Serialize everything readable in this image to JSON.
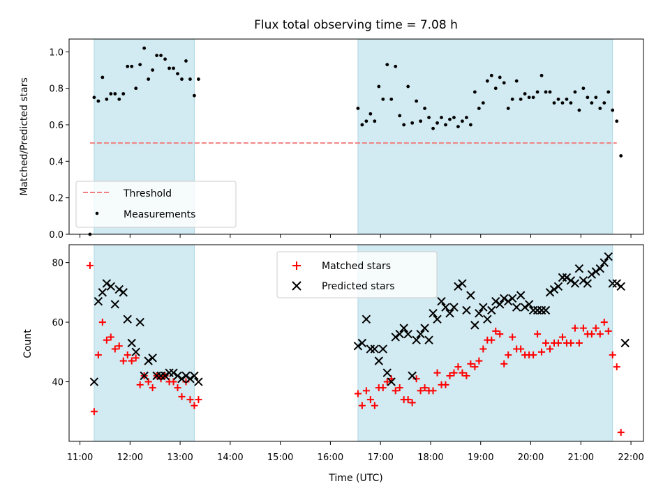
{
  "title": "Flux total observing time = 7.08 h",
  "xlabel": "Time (UTC)",
  "x_ticks": [
    "11:00",
    "12:00",
    "13:00",
    "14:00",
    "15:00",
    "16:00",
    "17:00",
    "18:00",
    "19:00",
    "20:00",
    "21:00",
    "22:00"
  ],
  "colors": {
    "shade": "#add8e6",
    "threshold": "#f08080",
    "matched": "#ff0000",
    "predicted": "#000000",
    "measurement": "#000000"
  },
  "chart_data": [
    {
      "type": "scatter",
      "ylabel": "Matched/Predicted stars",
      "xlim": [
        "10:47",
        "22:15"
      ],
      "ylim": [
        0,
        1.07
      ],
      "y_ticks": [
        "0.0",
        "0.2",
        "0.4",
        "0.6",
        "0.8",
        "1.0"
      ],
      "shaded_intervals": [
        [
          "11:17",
          "13:17"
        ],
        [
          "16:33",
          "21:38"
        ]
      ],
      "legend": {
        "placement": "lower-left",
        "threshold_label": "Threshold",
        "measurements_label": "Measurements"
      },
      "threshold": {
        "value": 0.5,
        "x_range": [
          "11:12",
          "21:43"
        ]
      },
      "measurements": [
        [
          "11:12",
          0.0
        ],
        [
          "11:17",
          0.75
        ],
        [
          "11:22",
          0.73
        ],
        [
          "11:27",
          0.86
        ],
        [
          "11:32",
          0.74
        ],
        [
          "11:37",
          0.77
        ],
        [
          "11:42",
          0.77
        ],
        [
          "11:47",
          0.74
        ],
        [
          "11:52",
          0.77
        ],
        [
          "11:57",
          0.92
        ],
        [
          "12:02",
          0.92
        ],
        [
          "12:07",
          0.8
        ],
        [
          "12:12",
          0.93
        ],
        [
          "12:17",
          1.02
        ],
        [
          "12:22",
          0.85
        ],
        [
          "12:27",
          0.9
        ],
        [
          "12:32",
          0.98
        ],
        [
          "12:37",
          0.98
        ],
        [
          "12:42",
          0.96
        ],
        [
          "12:47",
          0.91
        ],
        [
          "12:52",
          0.91
        ],
        [
          "12:57",
          0.88
        ],
        [
          "13:02",
          0.85
        ],
        [
          "13:07",
          0.95
        ],
        [
          "13:12",
          0.85
        ],
        [
          "13:17",
          0.76
        ],
        [
          "13:22",
          0.85
        ],
        [
          "16:33",
          0.69
        ],
        [
          "16:38",
          0.6
        ],
        [
          "16:43",
          0.62
        ],
        [
          "16:48",
          0.66
        ],
        [
          "16:53",
          0.62
        ],
        [
          "16:58",
          0.81
        ],
        [
          "17:03",
          0.74
        ],
        [
          "17:08",
          0.93
        ],
        [
          "17:13",
          0.74
        ],
        [
          "17:18",
          0.92
        ],
        [
          "17:23",
          0.65
        ],
        [
          "17:28",
          0.6
        ],
        [
          "17:33",
          0.81
        ],
        [
          "17:38",
          0.61
        ],
        [
          "17:43",
          0.73
        ],
        [
          "17:48",
          0.62
        ],
        [
          "17:53",
          0.69
        ],
        [
          "17:58",
          0.64
        ],
        [
          "18:03",
          0.58
        ],
        [
          "18:08",
          0.61
        ],
        [
          "18:13",
          0.64
        ],
        [
          "18:18",
          0.6
        ],
        [
          "18:23",
          0.63
        ],
        [
          "18:28",
          0.64
        ],
        [
          "18:33",
          0.59
        ],
        [
          "18:38",
          0.62
        ],
        [
          "18:43",
          0.64
        ],
        [
          "18:48",
          0.6
        ],
        [
          "18:53",
          0.78
        ],
        [
          "18:58",
          0.69
        ],
        [
          "19:03",
          0.72
        ],
        [
          "19:08",
          0.84
        ],
        [
          "19:13",
          0.87
        ],
        [
          "19:18",
          0.8
        ],
        [
          "19:23",
          0.86
        ],
        [
          "19:28",
          0.83
        ],
        [
          "19:33",
          0.69
        ],
        [
          "19:38",
          0.74
        ],
        [
          "19:43",
          0.84
        ],
        [
          "19:48",
          0.74
        ],
        [
          "19:53",
          0.77
        ],
        [
          "19:58",
          0.75
        ],
        [
          "20:03",
          0.75
        ],
        [
          "20:08",
          0.78
        ],
        [
          "20:13",
          0.87
        ],
        [
          "20:18",
          0.78
        ],
        [
          "20:23",
          0.78
        ],
        [
          "20:28",
          0.72
        ],
        [
          "20:33",
          0.74
        ],
        [
          "20:38",
          0.72
        ],
        [
          "20:43",
          0.74
        ],
        [
          "20:48",
          0.72
        ],
        [
          "20:53",
          0.78
        ],
        [
          "20:58",
          0.68
        ],
        [
          "21:03",
          0.8
        ],
        [
          "21:08",
          0.75
        ],
        [
          "21:13",
          0.72
        ],
        [
          "21:18",
          0.75
        ],
        [
          "21:23",
          0.69
        ],
        [
          "21:28",
          0.72
        ],
        [
          "21:33",
          0.78
        ],
        [
          "21:38",
          0.68
        ],
        [
          "21:43",
          0.62
        ],
        [
          "21:48",
          0.43
        ]
      ]
    },
    {
      "type": "scatter",
      "ylabel": "Count",
      "xlim": [
        "10:47",
        "22:15"
      ],
      "ylim": [
        20,
        86
      ],
      "y_ticks": [
        "40",
        "60",
        "80"
      ],
      "shaded_intervals": [
        [
          "11:17",
          "13:17"
        ],
        [
          "16:33",
          "21:38"
        ]
      ],
      "legend": {
        "placement": "top-center",
        "matched_label": "Matched stars",
        "predicted_label": "Predicted stars"
      },
      "series": [
        {
          "name": "Matched stars",
          "points": [
            [
              "11:12",
              79
            ],
            [
              "11:17",
              30
            ],
            [
              "11:22",
              49
            ],
            [
              "11:27",
              60
            ],
            [
              "11:32",
              54
            ],
            [
              "11:37",
              55
            ],
            [
              "11:42",
              51
            ],
            [
              "11:47",
              52
            ],
            [
              "11:52",
              47
            ],
            [
              "11:57",
              49
            ],
            [
              "12:02",
              47
            ],
            [
              "12:07",
              48
            ],
            [
              "12:12",
              39
            ],
            [
              "12:17",
              42
            ],
            [
              "12:22",
              40
            ],
            [
              "12:27",
              38
            ],
            [
              "12:32",
              42
            ],
            [
              "12:37",
              41
            ],
            [
              "12:42",
              42
            ],
            [
              "12:47",
              40
            ],
            [
              "12:52",
              40
            ],
            [
              "12:57",
              38
            ],
            [
              "13:02",
              35
            ],
            [
              "13:07",
              40
            ],
            [
              "13:12",
              34
            ],
            [
              "13:17",
              32
            ],
            [
              "13:22",
              34
            ],
            [
              "16:33",
              36
            ],
            [
              "16:38",
              32
            ],
            [
              "16:43",
              37
            ],
            [
              "16:48",
              34
            ],
            [
              "16:53",
              32
            ],
            [
              "16:58",
              38
            ],
            [
              "17:03",
              38
            ],
            [
              "17:08",
              40
            ],
            [
              "17:13",
              41
            ],
            [
              "17:18",
              37
            ],
            [
              "17:23",
              38
            ],
            [
              "17:28",
              34
            ],
            [
              "17:33",
              34
            ],
            [
              "17:38",
              33
            ],
            [
              "17:43",
              41
            ],
            [
              "17:48",
              37
            ],
            [
              "17:53",
              38
            ],
            [
              "17:58",
              37
            ],
            [
              "18:03",
              37
            ],
            [
              "18:08",
              43
            ],
            [
              "18:13",
              39
            ],
            [
              "18:18",
              39
            ],
            [
              "18:23",
              42
            ],
            [
              "18:28",
              43
            ],
            [
              "18:33",
              45
            ],
            [
              "18:38",
              43
            ],
            [
              "18:43",
              42
            ],
            [
              "18:48",
              46
            ],
            [
              "18:53",
              45
            ],
            [
              "18:58",
              47
            ],
            [
              "19:03",
              51
            ],
            [
              "19:08",
              54
            ],
            [
              "19:13",
              54
            ],
            [
              "19:18",
              57
            ],
            [
              "19:23",
              56
            ],
            [
              "19:28",
              46
            ],
            [
              "19:33",
              49
            ],
            [
              "19:38",
              55
            ],
            [
              "19:43",
              51
            ],
            [
              "19:48",
              51
            ],
            [
              "19:53",
              49
            ],
            [
              "19:58",
              49
            ],
            [
              "20:03",
              49
            ],
            [
              "20:08",
              56
            ],
            [
              "20:13",
              50
            ],
            [
              "20:18",
              53
            ],
            [
              "20:23",
              51
            ],
            [
              "20:28",
              53
            ],
            [
              "20:33",
              53
            ],
            [
              "20:38",
              55
            ],
            [
              "20:43",
              53
            ],
            [
              "20:48",
              53
            ],
            [
              "20:53",
              58
            ],
            [
              "20:58",
              53
            ],
            [
              "21:03",
              58
            ],
            [
              "21:08",
              56
            ],
            [
              "21:13",
              56
            ],
            [
              "21:18",
              58
            ],
            [
              "21:23",
              56
            ],
            [
              "21:28",
              60
            ],
            [
              "21:33",
              57
            ],
            [
              "21:38",
              49
            ],
            [
              "21:43",
              45
            ],
            [
              "21:48",
              23
            ]
          ]
        },
        {
          "name": "Predicted stars",
          "points": [
            [
              "11:17",
              40
            ],
            [
              "11:22",
              67
            ],
            [
              "11:27",
              70
            ],
            [
              "11:32",
              73
            ],
            [
              "11:37",
              72
            ],
            [
              "11:42",
              66
            ],
            [
              "11:47",
              71
            ],
            [
              "11:52",
              70
            ],
            [
              "11:57",
              61
            ],
            [
              "12:02",
              53
            ],
            [
              "12:07",
              50
            ],
            [
              "12:12",
              60
            ],
            [
              "12:17",
              42
            ],
            [
              "12:22",
              47
            ],
            [
              "12:27",
              48
            ],
            [
              "12:32",
              42
            ],
            [
              "12:37",
              42
            ],
            [
              "12:42",
              42
            ],
            [
              "12:47",
              43
            ],
            [
              "12:52",
              43
            ],
            [
              "12:57",
              42
            ],
            [
              "13:02",
              41
            ],
            [
              "13:07",
              42
            ],
            [
              "13:12",
              41
            ],
            [
              "13:17",
              42
            ],
            [
              "13:22",
              40
            ],
            [
              "16:33",
              52
            ],
            [
              "16:38",
              53
            ],
            [
              "16:43",
              61
            ],
            [
              "16:48",
              51
            ],
            [
              "16:53",
              51
            ],
            [
              "16:58",
              47
            ],
            [
              "17:03",
              51
            ],
            [
              "17:08",
              43
            ],
            [
              "17:13",
              40
            ],
            [
              "17:18",
              55
            ],
            [
              "17:23",
              56
            ],
            [
              "17:28",
              58
            ],
            [
              "17:33",
              56
            ],
            [
              "17:38",
              42
            ],
            [
              "17:43",
              54
            ],
            [
              "17:48",
              56
            ],
            [
              "17:53",
              58
            ],
            [
              "17:58",
              54
            ],
            [
              "18:03",
              63
            ],
            [
              "18:08",
              61
            ],
            [
              "18:13",
              67
            ],
            [
              "18:18",
              65
            ],
            [
              "18:23",
              63
            ],
            [
              "18:28",
              65
            ],
            [
              "18:33",
              72
            ],
            [
              "18:38",
              73
            ],
            [
              "18:43",
              64
            ],
            [
              "18:48",
              69
            ],
            [
              "18:53",
              59
            ],
            [
              "18:58",
              63
            ],
            [
              "19:03",
              65
            ],
            [
              "19:08",
              61
            ],
            [
              "19:13",
              64
            ],
            [
              "19:18",
              67
            ],
            [
              "19:23",
              66
            ],
            [
              "19:28",
              68
            ],
            [
              "19:33",
              67
            ],
            [
              "19:38",
              68
            ],
            [
              "19:43",
              65
            ],
            [
              "19:48",
              69
            ],
            [
              "19:53",
              65
            ],
            [
              "19:58",
              66
            ],
            [
              "20:03",
              64
            ],
            [
              "20:08",
              64
            ],
            [
              "20:13",
              64
            ],
            [
              "20:18",
              64
            ],
            [
              "20:23",
              70
            ],
            [
              "20:28",
              71
            ],
            [
              "20:33",
              72
            ],
            [
              "20:38",
              75
            ],
            [
              "20:43",
              75
            ],
            [
              "20:48",
              74
            ],
            [
              "20:53",
              73
            ],
            [
              "20:58",
              78
            ],
            [
              "21:03",
              74
            ],
            [
              "21:08",
              73
            ],
            [
              "21:13",
              76
            ],
            [
              "21:18",
              77
            ],
            [
              "21:23",
              78
            ],
            [
              "21:28",
              80
            ],
            [
              "21:33",
              82
            ],
            [
              "21:38",
              73
            ],
            [
              "21:43",
              73
            ],
            [
              "21:48",
              72
            ],
            [
              "21:53",
              53
            ]
          ]
        }
      ]
    }
  ]
}
